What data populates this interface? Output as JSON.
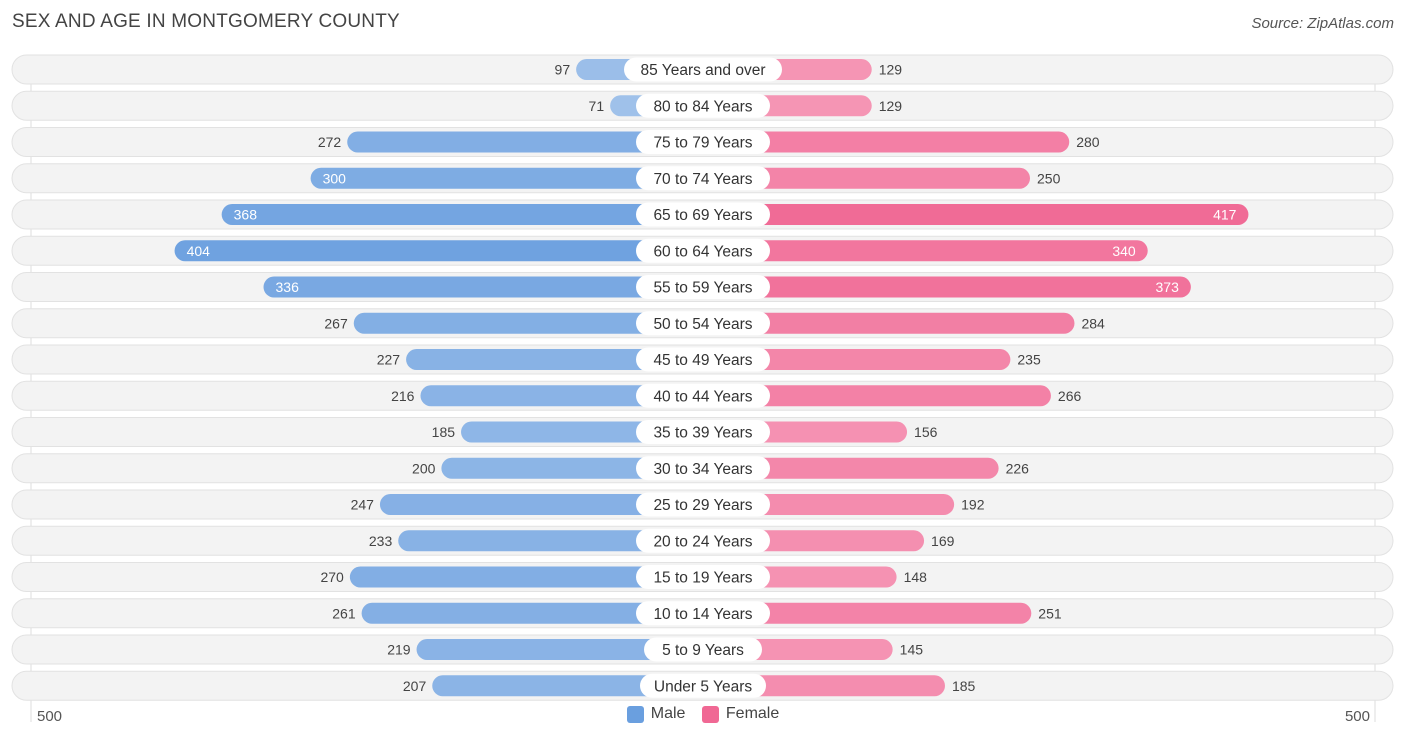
{
  "header": {
    "title": "SEX AND AGE IN MONTGOMERY COUNTY",
    "source": "Source: ZipAtlas.com"
  },
  "colors": {
    "male_light": "#a9c7ec",
    "male_dark": "#6a9fdf",
    "female_light": "#f7a8c2",
    "female_dark": "#f06894"
  },
  "chart_data": {
    "type": "bar",
    "orientation": "horizontal-diverging",
    "title": "SEX AND AGE IN MONTGOMERY COUNTY",
    "categories": [
      "85 Years and over",
      "80 to 84 Years",
      "75 to 79 Years",
      "70 to 74 Years",
      "65 to 69 Years",
      "60 to 64 Years",
      "55 to 59 Years",
      "50 to 54 Years",
      "45 to 49 Years",
      "40 to 44 Years",
      "35 to 39 Years",
      "30 to 34 Years",
      "25 to 29 Years",
      "20 to 24 Years",
      "15 to 19 Years",
      "10 to 14 Years",
      "5 to 9 Years",
      "Under 5 Years"
    ],
    "series": [
      {
        "name": "Male",
        "values": [
          97,
          71,
          272,
          300,
          368,
          404,
          336,
          267,
          227,
          216,
          185,
          200,
          247,
          233,
          270,
          261,
          219,
          207
        ]
      },
      {
        "name": "Female",
        "values": [
          129,
          129,
          280,
          250,
          417,
          340,
          373,
          284,
          235,
          266,
          156,
          226,
          192,
          169,
          148,
          251,
          145,
          185
        ]
      }
    ],
    "xlim": [
      -500,
      500
    ],
    "axis_min_label": "500",
    "axis_max_label": "500",
    "legend": [
      "Male",
      "Female"
    ]
  }
}
